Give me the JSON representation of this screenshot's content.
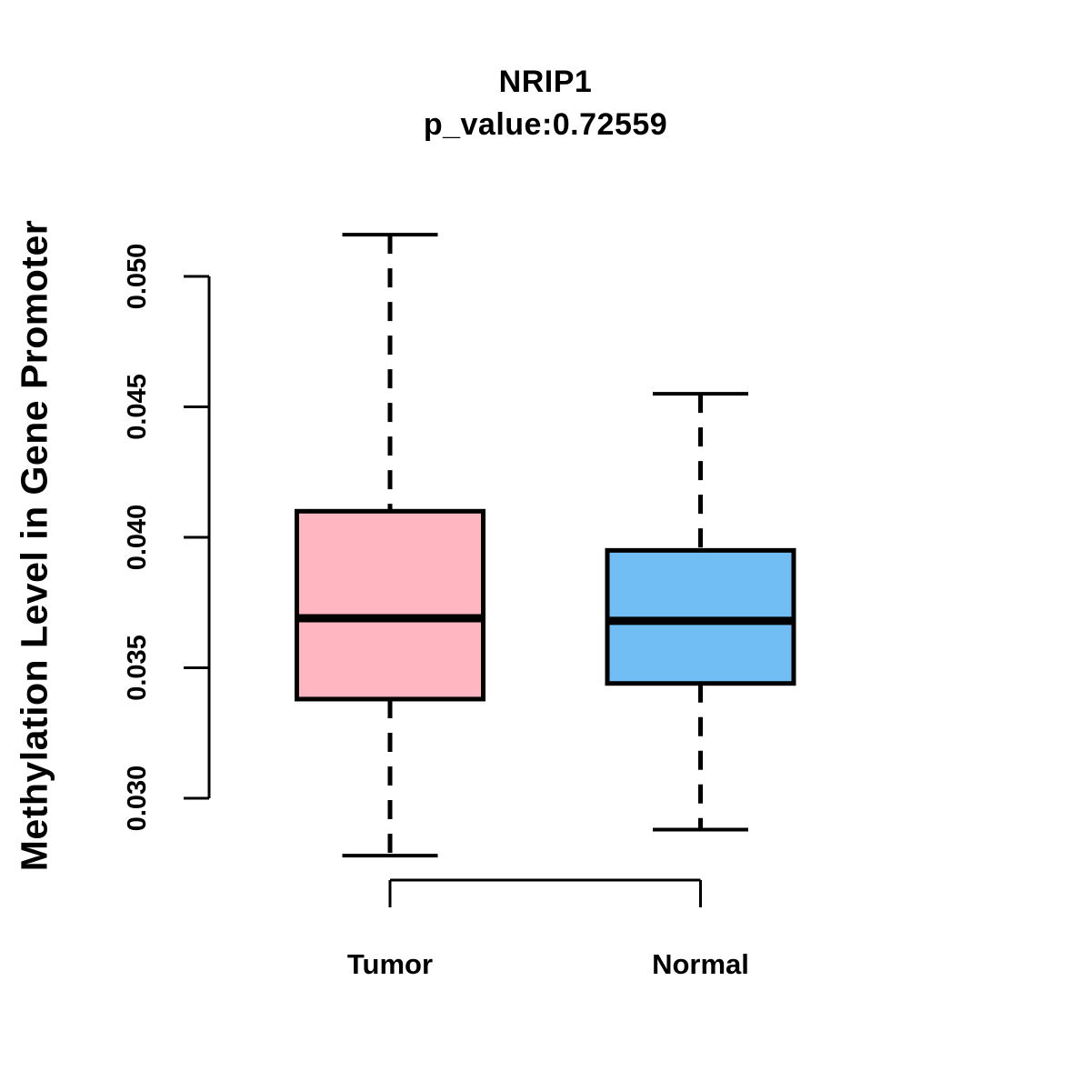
{
  "chart_data": {
    "type": "boxplot",
    "title": "NRIP1",
    "subtitle": "p_value:0.72559",
    "xlabel": "",
    "ylabel": "Methylation Level in Gene Promoter",
    "categories": [
      "Tumor",
      "Normal"
    ],
    "series": [
      {
        "name": "Tumor",
        "fill_color": "#FFB6C1",
        "whisker_low": 0.0278,
        "q1": 0.0338,
        "median": 0.0369,
        "q3": 0.041,
        "whisker_high": 0.0516
      },
      {
        "name": "Normal",
        "fill_color": "#71BEF5",
        "whisker_low": 0.0288,
        "q1": 0.0344,
        "median": 0.0368,
        "q3": 0.0395,
        "whisker_high": 0.0455
      }
    ],
    "yticks": [
      0.03,
      0.035,
      0.04,
      0.045,
      0.05
    ],
    "ytick_labels": [
      "0.030",
      "0.035",
      "0.040",
      "0.045",
      "0.050"
    ],
    "ylim": [
      0.0278,
      0.0516
    ],
    "grid": false,
    "legend": "none",
    "outliers": [],
    "axis_color": "#000000",
    "median_color": "#000000",
    "text_color": "#000000",
    "background_color": "#ffffff"
  }
}
